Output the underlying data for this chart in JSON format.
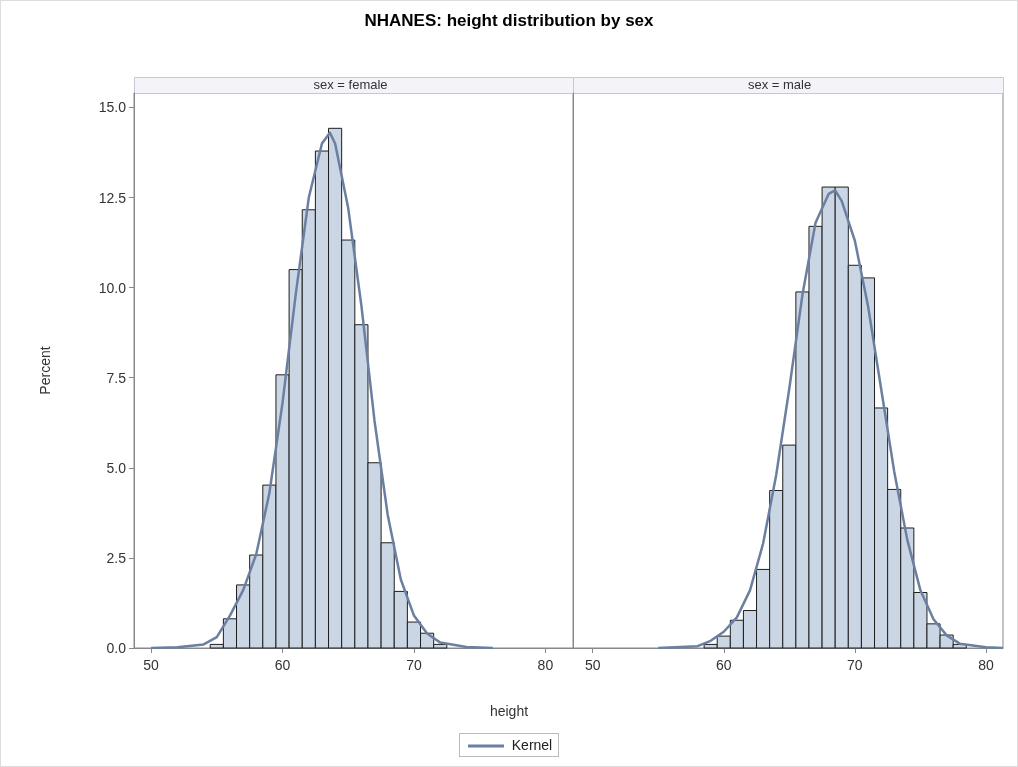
{
  "chart_data": [
    {
      "type": "histogram",
      "title": "NHANES: height distribution by sex",
      "subtitle": "sex = female",
      "xlabel": "height",
      "ylabel": "Percent",
      "legend": "bottom",
      "xlim": [
        48.7,
        82.1
      ],
      "xticks": [
        50,
        60,
        70,
        80
      ],
      "ylim": [
        0,
        15.4
      ],
      "yticks": [
        {
          "value": 0,
          "label": "0.0"
        },
        {
          "value": 2.5,
          "label": "2.5"
        },
        {
          "value": 5,
          "label": "5.0"
        },
        {
          "value": 7.5,
          "label": "7.5"
        },
        {
          "value": 10,
          "label": "10.0"
        },
        {
          "value": 12.5,
          "label": "12.5"
        },
        {
          "value": 15,
          "label": "15.0"
        }
      ],
      "grid": false,
      "series": [
        {
          "color": "#cbd6e5",
          "bins": [
            54.5,
            55.5,
            56.5,
            57.5,
            58.5,
            59.5,
            60.5,
            61.5,
            62.5,
            63.5,
            64.5,
            65.5,
            66.5,
            67.5,
            68.5,
            69.5,
            70.5,
            71.5,
            72.5
          ],
          "values": [
            0.1,
            0.81,
            1.75,
            2.58,
            4.52,
            7.58,
            10.5,
            12.16,
            13.79,
            14.42,
            11.32,
            8.97,
            5.14,
            2.92,
            1.57,
            0.72,
            0.41,
            0.1
          ]
        },
        {
          "type": "line",
          "name": "Kernel",
          "color": "#6b7fa1",
          "x": [
            50,
            52,
            54,
            55,
            56,
            57,
            58,
            59,
            60,
            61,
            62,
            63,
            63.6,
            64,
            65,
            66,
            67,
            68,
            69,
            70,
            71,
            72,
            74,
            76
          ],
          "values": [
            0,
            0.02,
            0.1,
            0.3,
            0.9,
            1.6,
            2.6,
            4.3,
            6.8,
            9.8,
            12.5,
            14.0,
            14.3,
            14.0,
            12.2,
            9.5,
            6.3,
            3.7,
            1.9,
            0.9,
            0.4,
            0.15,
            0.03,
            0
          ]
        }
      ]
    },
    {
      "type": "histogram",
      "subtitle": "sex = male",
      "tick_labels": "x",
      "xlim": [
        48.5,
        81.3
      ],
      "xticks": [
        50,
        60,
        70,
        80
      ],
      "ylim": [
        0,
        15.4
      ],
      "grid": false,
      "series": [
        {
          "color": "#cbd6e5",
          "bins": [
            58.5,
            59.5,
            60.5,
            61.5,
            62.5,
            63.5,
            64.5,
            65.5,
            66.5,
            67.5,
            68.5,
            69.5,
            70.5,
            71.5,
            72.5,
            73.5,
            74.5,
            75.5,
            76.5,
            77.5,
            78.5
          ],
          "values": [
            0.1,
            0.33,
            0.77,
            1.04,
            2.18,
            4.37,
            5.63,
            9.88,
            11.7,
            12.79,
            12.79,
            10.62,
            10.27,
            6.66,
            4.4,
            3.33,
            1.54,
            0.67,
            0.36,
            0.1
          ]
        },
        {
          "type": "line",
          "name": "Kernel",
          "color": "#6b7fa1",
          "x": [
            55,
            58,
            59,
            60,
            61,
            62,
            63,
            64,
            65,
            66,
            67,
            68,
            68.5,
            69,
            70,
            71,
            72,
            73,
            74,
            75,
            76,
            77,
            78,
            80,
            81.3
          ],
          "values": [
            0,
            0.05,
            0.2,
            0.45,
            0.85,
            1.6,
            2.9,
            4.8,
            7.2,
            9.8,
            11.8,
            12.6,
            12.7,
            12.4,
            11.3,
            9.5,
            7.2,
            4.9,
            3.0,
            1.6,
            0.8,
            0.35,
            0.12,
            0.02,
            0
          ]
        }
      ]
    }
  ]
}
